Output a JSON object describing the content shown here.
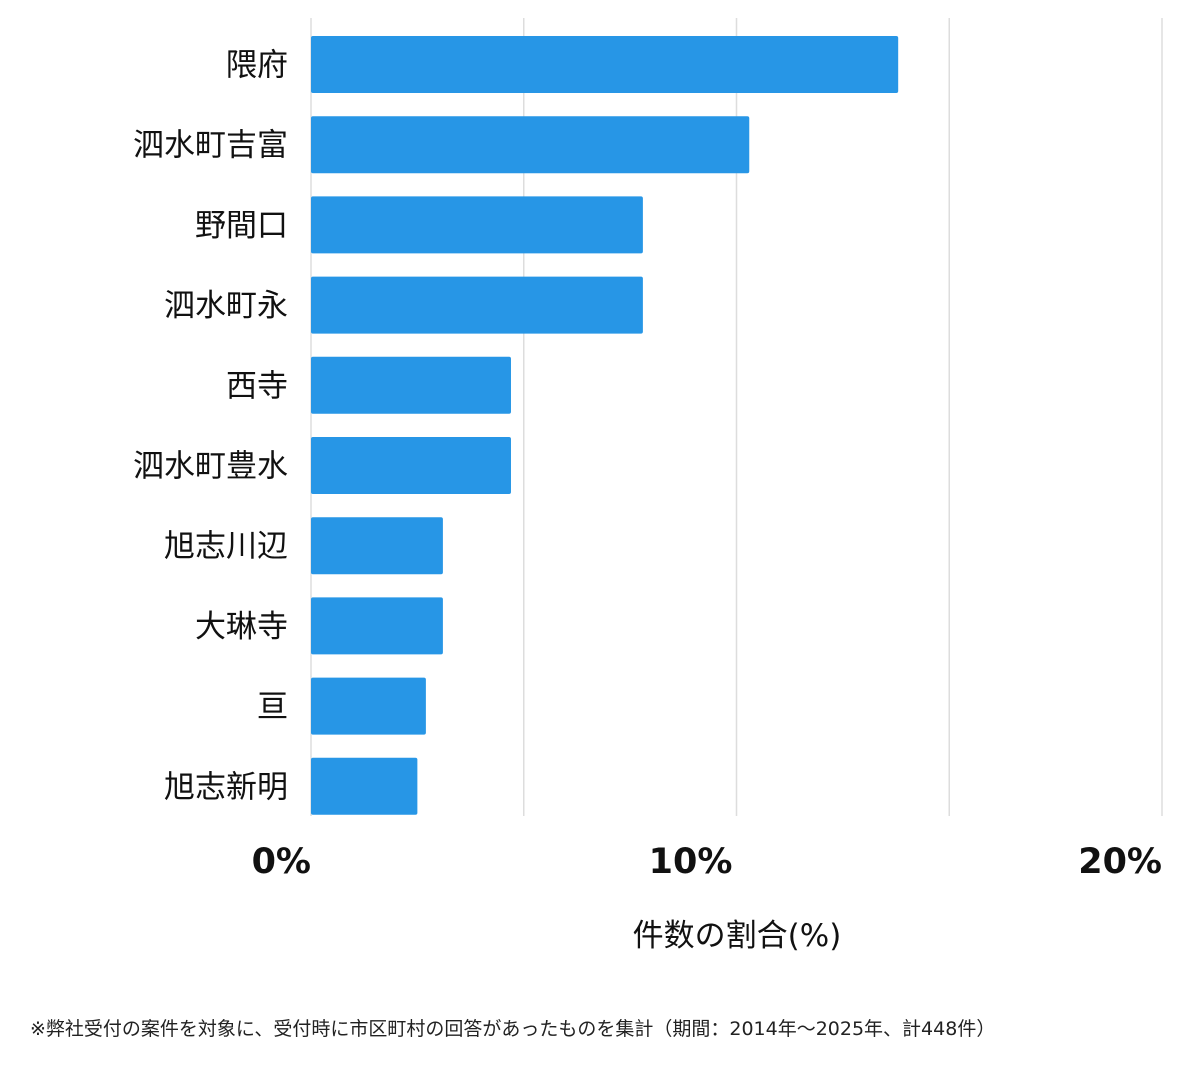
{
  "chart_data": {
    "type": "bar",
    "orientation": "horizontal",
    "categories": [
      "隈府",
      "泗水町吉富",
      "野間口",
      "泗水町永",
      "西寺",
      "泗水町豊水",
      "旭志川辺",
      "大琳寺",
      "亘",
      "旭志新明"
    ],
    "values": [
      13.8,
      10.3,
      7.8,
      7.8,
      4.7,
      4.7,
      3.1,
      3.1,
      2.7,
      2.5
    ],
    "xlim": [
      0,
      20
    ],
    "xticks": [
      0,
      10,
      20
    ],
    "tick_labels": [
      "0%",
      "10%",
      "20%"
    ],
    "xlabel": "件数の割合(%)",
    "title": "",
    "grid": true,
    "bar_color": "#2796e6",
    "grid_color": "#dddddd"
  },
  "footnote": "※弊社受付の案件を対象に、受付時に市区町村の回答があったものを集計（期間：2014年～2025年、計448件）"
}
